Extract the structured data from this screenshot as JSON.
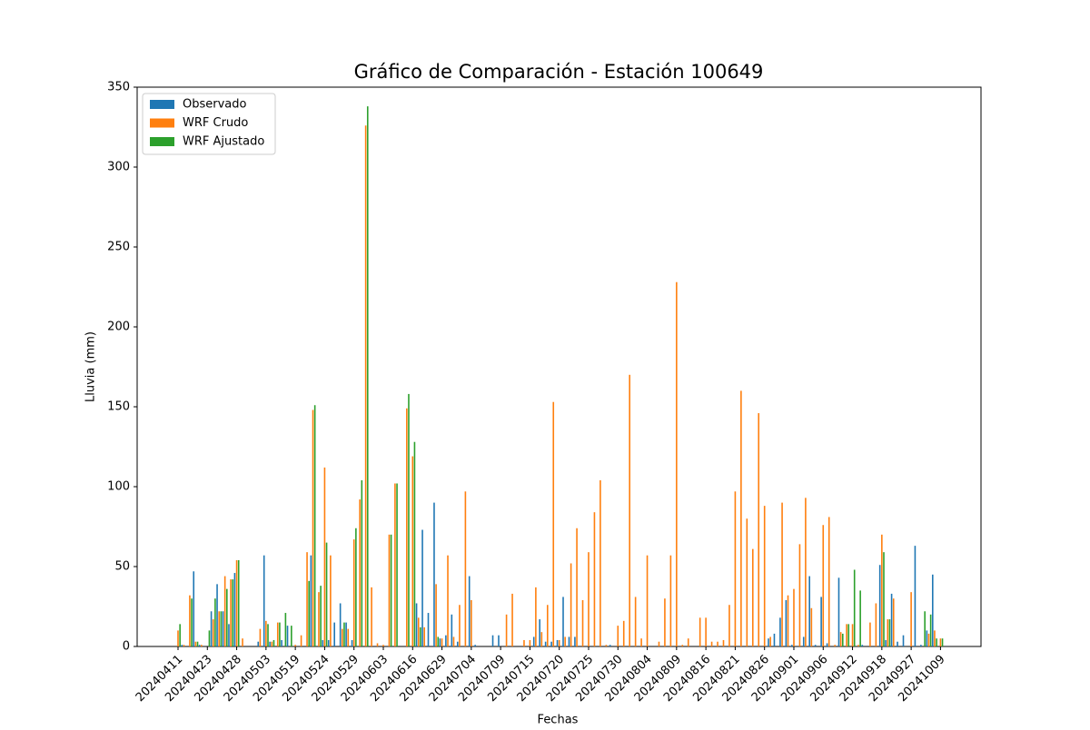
{
  "chart_data": {
    "type": "bar",
    "title": "Gráfico de Comparación - Estación 100649",
    "x_label": "Fechas",
    "y_label": "Lluvia (mm)",
    "categories": [
      "20240411",
      null,
      null,
      null,
      null,
      "20240423",
      null,
      null,
      null,
      null,
      "20240428",
      null,
      null,
      null,
      null,
      "20240503",
      null,
      null,
      null,
      null,
      "20240519",
      null,
      null,
      null,
      null,
      "20240524",
      null,
      null,
      null,
      null,
      "20240529",
      null,
      null,
      null,
      null,
      "20240603",
      null,
      null,
      null,
      null,
      "20240616",
      null,
      null,
      null,
      null,
      "20240629",
      null,
      null,
      null,
      null,
      "20240704",
      null,
      null,
      null,
      null,
      "20240709",
      null,
      null,
      null,
      null,
      "20240715",
      null,
      null,
      null,
      null,
      "20240720",
      null,
      null,
      null,
      null,
      "20240725",
      null,
      null,
      null,
      null,
      "20240730",
      null,
      null,
      null,
      null,
      "20240804",
      null,
      null,
      null,
      null,
      "20240809",
      null,
      null,
      null,
      null,
      "20240816",
      null,
      null,
      null,
      null,
      "20240821",
      null,
      null,
      null,
      null,
      "20240826",
      null,
      null,
      null,
      null,
      "20240901",
      null,
      null,
      null,
      null,
      "20240906",
      null,
      null,
      null,
      null,
      "20240912",
      null,
      null,
      null,
      null,
      "20240918",
      null,
      null,
      null,
      null,
      "20240927",
      null,
      null,
      null,
      null,
      "20241009"
    ],
    "series": [
      {
        "name": "Observado",
        "color": "#1f77b4",
        "values": [
          0,
          1,
          0,
          47,
          1,
          0,
          22,
          39,
          22,
          14,
          46,
          0,
          0,
          0,
          3,
          57,
          3,
          0,
          4,
          13,
          0,
          0,
          0,
          57,
          0,
          4,
          4,
          15,
          27,
          15,
          4,
          0,
          0,
          0,
          0,
          0,
          0,
          0,
          0,
          0,
          0,
          27,
          73,
          21,
          90,
          5,
          7,
          20,
          3,
          0,
          44,
          1,
          0,
          0,
          7,
          7,
          0,
          0,
          0,
          0,
          0,
          6,
          17,
          3,
          3,
          4,
          31,
          6,
          6,
          0,
          0,
          0,
          0,
          0,
          1,
          0,
          0,
          0,
          0,
          0,
          0,
          0,
          0,
          0,
          0,
          0,
          0,
          0,
          0,
          0,
          0,
          0,
          0,
          0,
          0,
          0,
          0,
          0,
          0,
          0,
          0,
          5,
          8,
          18,
          29,
          1,
          0,
          6,
          44,
          1,
          31,
          2,
          0,
          43,
          0,
          0,
          0,
          1,
          0,
          0,
          51,
          4,
          33,
          3,
          7,
          0,
          63,
          1,
          10,
          45,
          0
        ]
      },
      {
        "name": "WRF Crudo",
        "color": "#ff7f0e",
        "values": [
          10,
          1,
          32,
          3,
          1,
          0,
          17,
          22,
          44,
          42,
          54,
          5,
          0,
          0,
          11,
          16,
          3,
          15,
          0,
          0,
          1,
          7,
          59,
          148,
          34,
          112,
          57,
          0,
          11,
          11,
          67,
          92,
          326,
          37,
          2,
          1,
          70,
          102,
          0,
          149,
          119,
          18,
          12,
          0,
          39,
          5,
          57,
          6,
          26,
          97,
          29,
          0,
          0,
          0,
          0,
          0,
          20,
          33,
          0,
          4,
          4,
          37,
          9,
          26,
          153,
          4,
          6,
          52,
          74,
          29,
          59,
          84,
          104,
          1,
          0,
          13,
          16,
          170,
          31,
          5,
          57,
          0,
          3,
          30,
          57,
          228,
          1,
          5,
          0,
          18,
          18,
          3,
          3,
          4,
          26,
          97,
          160,
          80,
          61,
          146,
          88,
          6,
          0,
          90,
          32,
          36,
          64,
          93,
          24,
          0,
          76,
          81,
          1,
          9,
          14,
          14,
          1,
          0,
          15,
          27,
          70,
          17,
          30,
          0,
          0,
          34,
          0,
          0,
          8,
          10,
          5
        ]
      },
      {
        "name": "WRF Ajustado",
        "color": "#2ca02c",
        "values": [
          14,
          0,
          30,
          3,
          0,
          10,
          30,
          22,
          36,
          42,
          54,
          0,
          0,
          0,
          0,
          14,
          4,
          15,
          21,
          13,
          0,
          0,
          41,
          151,
          38,
          65,
          0,
          0,
          15,
          0,
          74,
          104,
          338,
          0,
          0,
          0,
          70,
          102,
          0,
          158,
          128,
          12,
          0,
          0,
          6,
          0,
          0,
          0,
          0,
          0,
          0,
          0,
          0,
          0,
          0,
          0,
          0,
          0,
          0,
          0,
          0,
          0,
          0,
          0,
          0,
          0,
          0,
          0,
          0,
          0,
          0,
          0,
          0,
          0,
          0,
          0,
          0,
          0,
          0,
          0,
          0,
          0,
          0,
          0,
          0,
          0,
          0,
          0,
          0,
          0,
          0,
          0,
          0,
          0,
          0,
          0,
          0,
          0,
          0,
          0,
          0,
          0,
          0,
          0,
          0,
          0,
          0,
          0,
          0,
          0,
          0,
          0,
          0,
          8,
          14,
          48,
          35,
          0,
          0,
          0,
          59,
          17,
          0,
          0,
          0,
          0,
          0,
          22,
          20,
          5,
          5
        ]
      }
    ],
    "ylim": [
      0,
      350
    ],
    "yticks": [
      0,
      50,
      100,
      150,
      200,
      250,
      300,
      350
    ],
    "legend": "upper-left"
  }
}
